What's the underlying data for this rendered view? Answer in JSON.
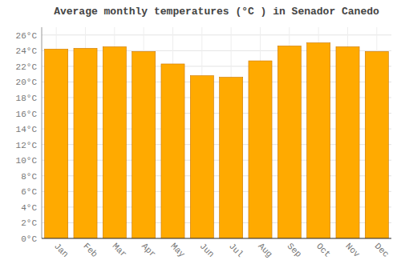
{
  "chart_data": {
    "type": "bar",
    "title": "Average monthly temperatures (°C ) in Senador Canedo",
    "categories": [
      "Jan",
      "Feb",
      "Mar",
      "Apr",
      "May",
      "Jun",
      "Jul",
      "Aug",
      "Sep",
      "Oct",
      "Nov",
      "Dec"
    ],
    "values": [
      24.2,
      24.3,
      24.5,
      23.9,
      22.3,
      20.8,
      20.6,
      22.7,
      24.6,
      25.0,
      24.5,
      23.9
    ],
    "color": "#FFAA00",
    "ylim": [
      0,
      27
    ],
    "yticks": [
      {
        "value": 0,
        "label": "0°C"
      },
      {
        "value": 2,
        "label": "2°C"
      },
      {
        "value": 4,
        "label": "4°C"
      },
      {
        "value": 6,
        "label": "6°C"
      },
      {
        "value": 8,
        "label": "8°C"
      },
      {
        "value": 10,
        "label": "10°C"
      },
      {
        "value": 12,
        "label": "12°C"
      },
      {
        "value": 14,
        "label": "14°C"
      },
      {
        "value": 16,
        "label": "16°C"
      },
      {
        "value": 18,
        "label": "18°C"
      },
      {
        "value": 20,
        "label": "20°C"
      },
      {
        "value": 22,
        "label": "22°C"
      },
      {
        "value": 24,
        "label": "24°C"
      },
      {
        "value": 26,
        "label": "26°C"
      }
    ],
    "grid": true
  }
}
